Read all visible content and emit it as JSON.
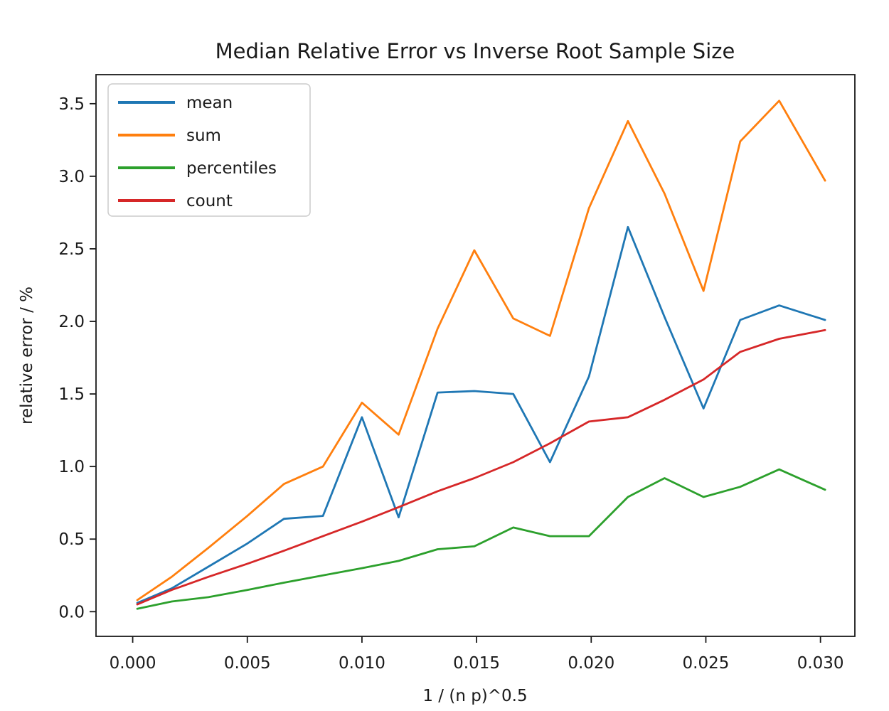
{
  "figure": {
    "background": "#ffffff"
  },
  "chart_data": {
    "type": "line",
    "title": "Median Relative Error vs Inverse Root Sample Size",
    "xlabel": "1 / (n p)^0.5",
    "ylabel": "relative error / %",
    "grid": false,
    "legend_position": "upper left",
    "xlim": [
      -0.0016,
      0.0315
    ],
    "ylim": [
      -0.17,
      3.7
    ],
    "x_tick_labels": [
      "0.000",
      "0.005",
      "0.010",
      "0.015",
      "0.020",
      "0.025",
      "0.030"
    ],
    "x_tick_values": [
      0.0,
      0.005,
      0.01,
      0.015,
      0.02,
      0.025,
      0.03
    ],
    "y_tick_labels": [
      "0.0",
      "0.5",
      "1.0",
      "1.5",
      "2.0",
      "2.5",
      "3.0",
      "3.5"
    ],
    "y_tick_values": [
      0.0,
      0.5,
      1.0,
      1.5,
      2.0,
      2.5,
      3.0,
      3.5
    ],
    "x": [
      0.0002,
      0.0017,
      0.0033,
      0.005,
      0.0066,
      0.0083,
      0.01,
      0.0116,
      0.0133,
      0.0149,
      0.0166,
      0.0182,
      0.0199,
      0.0216,
      0.0232,
      0.0249,
      0.0265,
      0.0282,
      0.0302
    ],
    "series": [
      {
        "name": "mean",
        "color": "#1f77b4",
        "values": [
          0.06,
          0.16,
          0.31,
          0.47,
          0.64,
          0.66,
          1.34,
          0.65,
          1.51,
          1.52,
          1.5,
          1.03,
          1.62,
          2.65,
          2.03,
          1.4,
          2.01,
          2.11,
          2.01
        ]
      },
      {
        "name": "sum",
        "color": "#ff7f0e",
        "values": [
          0.08,
          0.24,
          0.44,
          0.66,
          0.88,
          1.0,
          1.44,
          1.22,
          1.95,
          2.49,
          2.02,
          1.9,
          2.78,
          3.38,
          2.88,
          2.21,
          3.24,
          3.52,
          2.97
        ]
      },
      {
        "name": "percentiles",
        "color": "#2ca02c",
        "values": [
          0.02,
          0.07,
          0.1,
          0.15,
          0.2,
          0.25,
          0.3,
          0.35,
          0.43,
          0.45,
          0.58,
          0.52,
          0.52,
          0.79,
          0.92,
          0.79,
          0.86,
          0.98,
          0.84
        ]
      },
      {
        "name": "count",
        "color": "#d62728",
        "values": [
          0.05,
          0.15,
          0.24,
          0.33,
          0.42,
          0.52,
          0.62,
          0.72,
          0.83,
          0.92,
          1.03,
          1.16,
          1.31,
          1.34,
          1.46,
          1.6,
          1.79,
          1.88,
          1.94
        ]
      }
    ],
    "axis_color": "#1a1a1a",
    "text_color": "#1a1a1a",
    "legend_frame_color": "#cccccc"
  }
}
